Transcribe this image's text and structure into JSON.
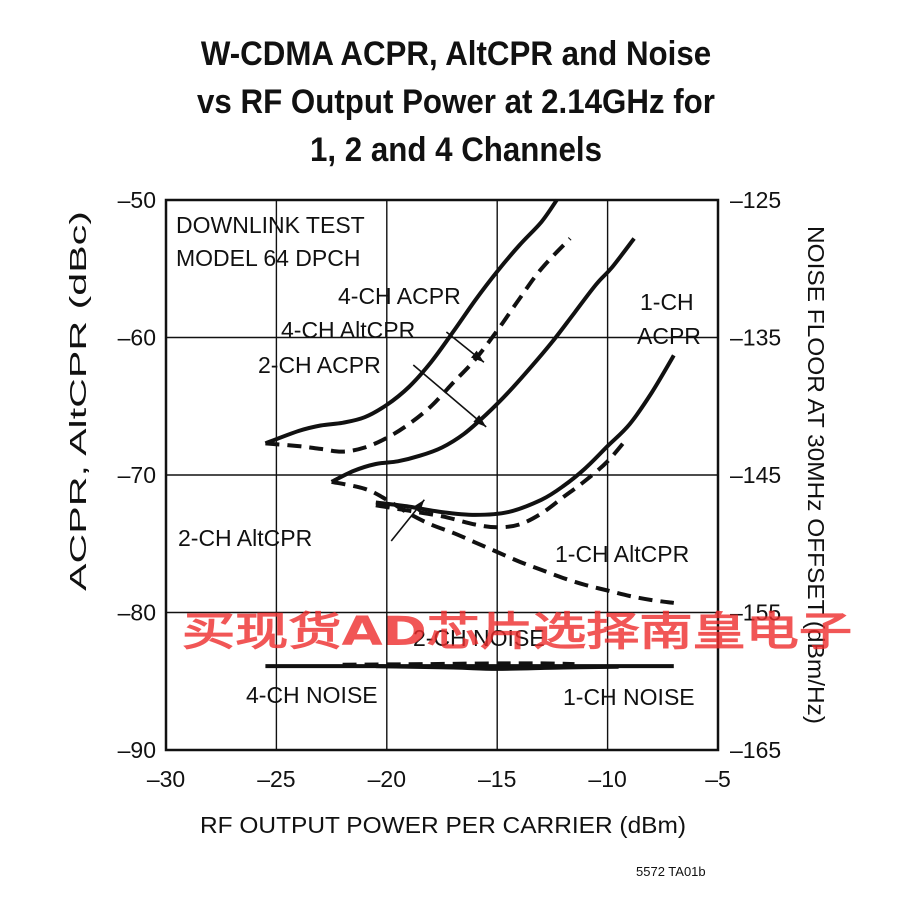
{
  "chart_data": {
    "type": "line",
    "title_lines": [
      "W-CDMA ACPR, AltCPR and Noise",
      "vs RF Output Power at 2.14GHz for",
      "1, 2 and 4 Channels"
    ],
    "xlabel": "RF OUTPUT POWER PER CARRIER (dBm)",
    "ylabel": "ACPR, AltCPR (dBc)",
    "y2label": "NOISE FLOOR AT 30MHz OFFSET (dBm/Hz)",
    "xlim": [
      -30,
      -5
    ],
    "ylim": [
      -90,
      -50
    ],
    "y2lim": [
      -165,
      -125
    ],
    "grid": true,
    "x_ticks": [
      "–30",
      "–25",
      "–20",
      "–15",
      "–10",
      "–5"
    ],
    "y_ticks": [
      "–90",
      "–80",
      "–70",
      "–60",
      "–50"
    ],
    "y2_ticks": [
      "–165",
      "–155",
      "–145",
      "–135",
      "–125"
    ],
    "annotations": {
      "test_model_line1": "DOWNLINK TEST",
      "test_model_line2": "MODEL 64 DPCH",
      "ch4_acpr": "4-CH ACPR",
      "ch4_altcpr": "4-CH AltCPR",
      "ch2_acpr": "2-CH ACPR",
      "ch1_acpr_line1": "1-CH",
      "ch1_acpr_line2": "ACPR",
      "ch2_altcpr": "2-CH AltCPR",
      "ch1_altcpr": "1-CH AltCPR",
      "ch2_noise": "2-CH NOISE",
      "ch4_noise": "4-CH NOISE",
      "ch1_noise": "1-CH NOISE"
    },
    "series": [
      {
        "name": "4-CH ACPR",
        "axis": "left",
        "style": "solid",
        "points": [
          [
            -25.5,
            -67.7
          ],
          [
            -24,
            -66.8
          ],
          [
            -23,
            -66.4
          ],
          [
            -22,
            -66.2
          ],
          [
            -21,
            -65.8
          ],
          [
            -20,
            -64.9
          ],
          [
            -19,
            -63.6
          ],
          [
            -18,
            -61.8
          ],
          [
            -17,
            -59.6
          ],
          [
            -16,
            -57.3
          ],
          [
            -15,
            -55.2
          ],
          [
            -14,
            -53.3
          ],
          [
            -13,
            -51.6
          ],
          [
            -12.3,
            -50
          ]
        ]
      },
      {
        "name": "4-CH AltCPR",
        "axis": "left",
        "style": "dashed",
        "points": [
          [
            -25.5,
            -67.7
          ],
          [
            -24,
            -67.9
          ],
          [
            -23,
            -68.1
          ],
          [
            -22,
            -68.3
          ],
          [
            -21,
            -68.0
          ],
          [
            -20,
            -67.3
          ],
          [
            -19,
            -66.3
          ],
          [
            -18,
            -65.0
          ],
          [
            -17,
            -63.3
          ],
          [
            -16,
            -61.6
          ],
          [
            -15,
            -59.5
          ],
          [
            -14,
            -57.2
          ],
          [
            -13,
            -55.0
          ],
          [
            -11.7,
            -52.8
          ]
        ]
      },
      {
        "name": "2-CH ACPR",
        "axis": "left",
        "style": "solid",
        "points": [
          [
            -22.5,
            -70.5
          ],
          [
            -21.5,
            -69.7
          ],
          [
            -20.5,
            -69.2
          ],
          [
            -19.5,
            -69.0
          ],
          [
            -18.5,
            -68.6
          ],
          [
            -17.5,
            -68.0
          ],
          [
            -16.5,
            -67.0
          ],
          [
            -15.5,
            -65.6
          ],
          [
            -14.5,
            -64.0
          ],
          [
            -13.5,
            -62.2
          ],
          [
            -12.5,
            -60.3
          ],
          [
            -11.5,
            -58.2
          ],
          [
            -10.5,
            -56.1
          ],
          [
            -9.8,
            -54.9
          ],
          [
            -8.8,
            -52.8
          ]
        ]
      },
      {
        "name": "1-CH ACPR",
        "axis": "left",
        "style": "solid",
        "points": [
          [
            -20.5,
            -72.0
          ],
          [
            -19,
            -72.3
          ],
          [
            -17.5,
            -72.7
          ],
          [
            -16,
            -72.9
          ],
          [
            -14.5,
            -72.7
          ],
          [
            -13,
            -71.8
          ],
          [
            -12,
            -70.8
          ],
          [
            -11,
            -69.5
          ],
          [
            -10,
            -67.9
          ],
          [
            -9,
            -66.3
          ],
          [
            -8,
            -64.0
          ],
          [
            -7,
            -61.3
          ]
        ]
      },
      {
        "name": "1-CH AltCPR",
        "axis": "left",
        "style": "dashed",
        "points": [
          [
            -20.5,
            -72.2
          ],
          [
            -19,
            -72.6
          ],
          [
            -17.5,
            -73.0
          ],
          [
            -16,
            -73.6
          ],
          [
            -15,
            -73.8
          ],
          [
            -14,
            -73.6
          ],
          [
            -13,
            -72.8
          ],
          [
            -12,
            -71.6
          ],
          [
            -11,
            -70.4
          ],
          [
            -10,
            -69.0
          ],
          [
            -9.1,
            -67.3
          ]
        ]
      },
      {
        "name": "2-CH AltCPR",
        "axis": "left",
        "style": "dashed",
        "points": [
          [
            -22.5,
            -70.5
          ],
          [
            -21,
            -71.0
          ],
          [
            -20,
            -71.8
          ],
          [
            -19,
            -72.8
          ],
          [
            -18,
            -73.6
          ],
          [
            -17,
            -74.2
          ],
          [
            -16,
            -74.9
          ],
          [
            -15,
            -75.6
          ],
          [
            -14,
            -76.3
          ],
          [
            -13,
            -76.9
          ],
          [
            -12,
            -77.5
          ],
          [
            -11,
            -78.0
          ],
          [
            -10,
            -78.4
          ],
          [
            -9,
            -78.8
          ],
          [
            -8,
            -79.1
          ],
          [
            -7,
            -79.3
          ]
        ]
      },
      {
        "name": "4-CH NOISE",
        "axis": "right",
        "style": "solid",
        "points": [
          [
            -25.5,
            -158.9
          ],
          [
            -20,
            -158.9
          ],
          [
            -15,
            -158.9
          ],
          [
            -10,
            -158.9
          ],
          [
            -7,
            -158.9
          ]
        ]
      },
      {
        "name": "2-CH NOISE",
        "axis": "right",
        "style": "dashed",
        "points": [
          [
            -22,
            -158.8
          ],
          [
            -18,
            -158.75
          ],
          [
            -15,
            -158.7
          ],
          [
            -13,
            -158.7
          ],
          [
            -11.5,
            -158.75
          ]
        ]
      },
      {
        "name": "1-CH NOISE",
        "axis": "right",
        "style": "solid",
        "points": [
          [
            -20.5,
            -158.9
          ],
          [
            -17,
            -159.0
          ],
          [
            -15,
            -159.1
          ],
          [
            -12,
            -159.0
          ],
          [
            -9.5,
            -158.95
          ]
        ]
      }
    ],
    "arrows": [
      {
        "name": "arrow-4ch-altcpr",
        "from": [
          -17.3,
          -59.6
        ],
        "to": [
          -15.6,
          -61.8
        ]
      },
      {
        "name": "arrow-2ch-acpr",
        "from": [
          -18.8,
          -62.0
        ],
        "to": [
          -15.5,
          -66.5
        ]
      },
      {
        "name": "arrow-2ch-altcpr",
        "from": [
          -19.8,
          -74.8
        ],
        "to": [
          -18.3,
          -71.8
        ]
      }
    ],
    "figure_id": "5572 TA01b",
    "watermark": "买现货AD芯片选择南皇电子"
  }
}
